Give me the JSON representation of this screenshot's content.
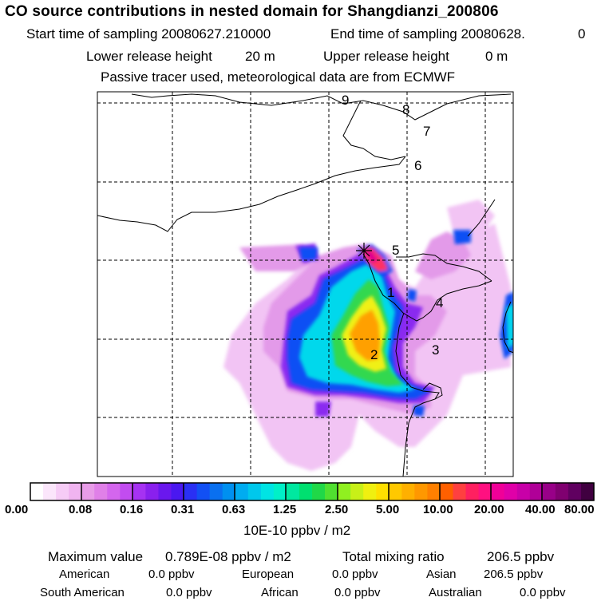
{
  "header": {
    "title": "CO  source contributions in nested domain for Shangdianzi_200806",
    "start_label": "Start time of sampling 20080627.210000",
    "end_label": "End time of sampling 20080628.",
    "end_value": "0",
    "lower_label": "Lower release height",
    "lower_value": "20 m",
    "upper_label": "Upper release height",
    "upper_value": "0 m",
    "note": "Passive tracer used, meteorological data are from ECMWF"
  },
  "map": {
    "region_labels": [
      "1",
      "2",
      "3",
      "4",
      "5",
      "6",
      "7",
      "8",
      "9"
    ],
    "station": "Shangdianzi",
    "grid": "dashed lat/lon grid"
  },
  "colorbar": {
    "tick_labels": [
      "0.00",
      "0.08",
      "0.16",
      "0.31",
      "0.63",
      "1.25",
      "2.50",
      "5.00",
      "10.00",
      "20.00",
      "40.00",
      "80.00"
    ],
    "unit": "10E-10 ppbv / m2",
    "colors": [
      "#ffffff",
      "#fbe6fb",
      "#f6ccf6",
      "#f0b4f0",
      "#e89ce8",
      "#e080e8",
      "#d466ee",
      "#c24cf0",
      "#a632f2",
      "#8a20ee",
      "#6a18ee",
      "#4a18f0",
      "#2a30f4",
      "#1250f4",
      "#0a70f0",
      "#0090f0",
      "#00acf0",
      "#00c8ec",
      "#00e4e4",
      "#00f0c8",
      "#00e8a0",
      "#00e070",
      "#20d848",
      "#50e030",
      "#90f020",
      "#c8f018",
      "#f0f010",
      "#ffe000",
      "#ffc800",
      "#ffb000",
      "#ff9800",
      "#ff8000",
      "#ff6000",
      "#ff4040",
      "#ff2060",
      "#ff1080",
      "#f00098",
      "#e000a8",
      "#c800a8",
      "#b00098",
      "#980088",
      "#800070",
      "#600060",
      "#400040"
    ]
  },
  "footer": {
    "max_label": "Maximum value",
    "max_value": "0.789E-08 ppbv / m2",
    "total_label": "Total mixing ratio",
    "total_value": "206.5 ppbv",
    "sources": [
      {
        "name": "American",
        "value": "0.0 ppbv"
      },
      {
        "name": "European",
        "value": "0.0 ppbv"
      },
      {
        "name": "Asian",
        "value": "206.5 ppbv"
      },
      {
        "name": "South American",
        "value": "0.0 ppbv"
      },
      {
        "name": "African",
        "value": "0.0 ppbv"
      },
      {
        "name": "Australian",
        "value": "0.0 ppbv"
      }
    ]
  }
}
